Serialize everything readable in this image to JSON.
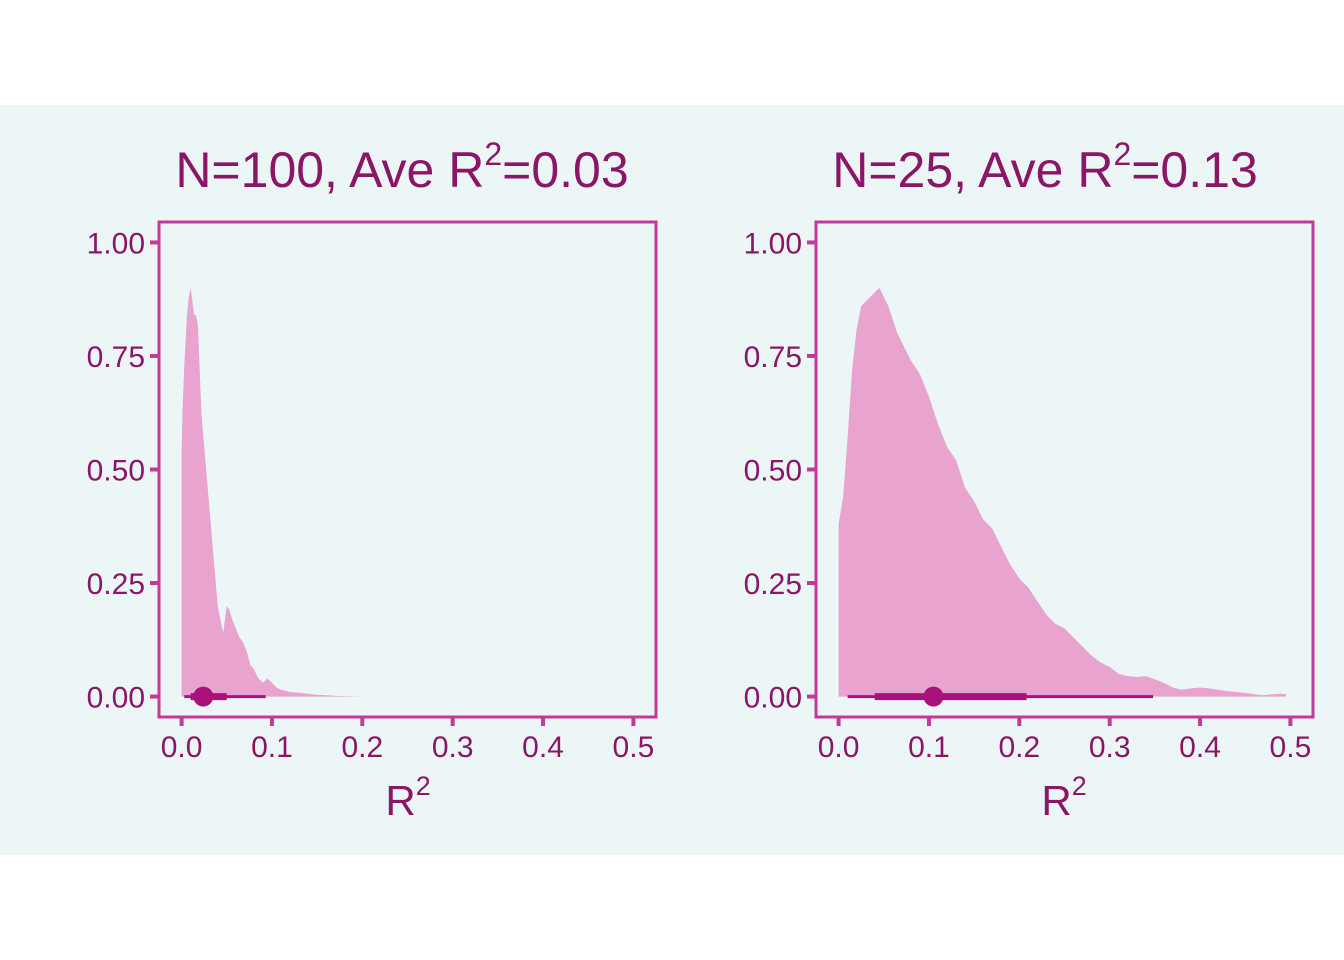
{
  "colors": {
    "background": "#edf6f7",
    "text": "#8b1567",
    "frame": "#c2399a",
    "density_fill": "#e8a3cf",
    "interval": "#a9127b"
  },
  "chart_data": [
    {
      "type": "area",
      "title_parts": [
        "N=100, Ave R",
        "2",
        "=0.03"
      ],
      "xlabel_parts": [
        "R",
        "2"
      ],
      "ylabel": "",
      "xlim": [
        -0.025,
        0.525
      ],
      "ylim": [
        -0.045,
        1.045
      ],
      "xticks": [
        0.0,
        0.1,
        0.2,
        0.3,
        0.4,
        0.5
      ],
      "xtick_labels": [
        "0.0",
        "0.1",
        "0.2",
        "0.3",
        "0.4",
        "0.5"
      ],
      "yticks": [
        0.0,
        0.25,
        0.5,
        0.75,
        1.0
      ],
      "ytick_labels": [
        "0.00",
        "0.25",
        "0.50",
        "0.75",
        "1.00"
      ],
      "grid": false,
      "density": {
        "x": [
          0.0,
          0.001,
          0.003,
          0.006,
          0.008,
          0.01,
          0.012,
          0.014,
          0.016,
          0.018,
          0.02,
          0.022,
          0.025,
          0.028,
          0.031,
          0.034,
          0.037,
          0.04,
          0.043,
          0.046,
          0.05,
          0.053,
          0.056,
          0.06,
          0.064,
          0.068,
          0.072,
          0.076,
          0.08,
          0.085,
          0.09,
          0.095,
          0.1,
          0.105,
          0.11,
          0.12,
          0.13,
          0.14,
          0.15,
          0.16,
          0.17,
          0.18,
          0.2
        ],
        "y": [
          0.54,
          0.63,
          0.73,
          0.84,
          0.88,
          0.9,
          0.87,
          0.84,
          0.84,
          0.82,
          0.72,
          0.62,
          0.55,
          0.48,
          0.41,
          0.34,
          0.27,
          0.2,
          0.17,
          0.14,
          0.2,
          0.19,
          0.17,
          0.15,
          0.13,
          0.12,
          0.1,
          0.07,
          0.06,
          0.04,
          0.03,
          0.04,
          0.03,
          0.02,
          0.015,
          0.01,
          0.008,
          0.006,
          0.004,
          0.003,
          0.002,
          0.001,
          0.0
        ]
      },
      "point_interval": {
        "point": 0.024,
        "inner": [
          0.01,
          0.05
        ],
        "outer": [
          0.003,
          0.093
        ]
      }
    },
    {
      "type": "area",
      "title_parts": [
        "N=25, Ave R",
        "2",
        "=0.13"
      ],
      "xlabel_parts": [
        "R",
        "2"
      ],
      "ylabel": "",
      "xlim": [
        -0.025,
        0.525
      ],
      "ylim": [
        -0.045,
        1.045
      ],
      "xticks": [
        0.0,
        0.1,
        0.2,
        0.3,
        0.4,
        0.5
      ],
      "xtick_labels": [
        "0.0",
        "0.1",
        "0.2",
        "0.3",
        "0.4",
        "0.5"
      ],
      "yticks": [
        0.0,
        0.25,
        0.5,
        0.75,
        1.0
      ],
      "ytick_labels": [
        "0.00",
        "0.25",
        "0.50",
        "0.75",
        "1.00"
      ],
      "grid": false,
      "density": {
        "x": [
          0.0,
          0.005,
          0.01,
          0.015,
          0.02,
          0.025,
          0.03,
          0.035,
          0.04,
          0.045,
          0.05,
          0.055,
          0.06,
          0.065,
          0.07,
          0.08,
          0.09,
          0.1,
          0.11,
          0.12,
          0.13,
          0.14,
          0.15,
          0.16,
          0.17,
          0.18,
          0.19,
          0.2,
          0.21,
          0.22,
          0.23,
          0.24,
          0.25,
          0.26,
          0.27,
          0.28,
          0.29,
          0.3,
          0.31,
          0.32,
          0.33,
          0.34,
          0.35,
          0.36,
          0.37,
          0.38,
          0.39,
          0.4,
          0.41,
          0.42,
          0.43,
          0.44,
          0.45,
          0.46,
          0.47,
          0.48,
          0.49,
          0.495
        ],
        "y": [
          0.38,
          0.44,
          0.57,
          0.72,
          0.81,
          0.86,
          0.87,
          0.88,
          0.89,
          0.9,
          0.88,
          0.86,
          0.83,
          0.8,
          0.78,
          0.74,
          0.71,
          0.66,
          0.6,
          0.55,
          0.52,
          0.46,
          0.43,
          0.39,
          0.37,
          0.33,
          0.29,
          0.26,
          0.24,
          0.21,
          0.18,
          0.16,
          0.15,
          0.13,
          0.11,
          0.09,
          0.075,
          0.065,
          0.05,
          0.045,
          0.043,
          0.045,
          0.038,
          0.03,
          0.02,
          0.015,
          0.018,
          0.02,
          0.018,
          0.015,
          0.012,
          0.01,
          0.008,
          0.005,
          0.003,
          0.005,
          0.006,
          0.005
        ]
      },
      "point_interval": {
        "point": 0.105,
        "inner": [
          0.04,
          0.208
        ],
        "outer": [
          0.01,
          0.348
        ]
      }
    }
  ]
}
